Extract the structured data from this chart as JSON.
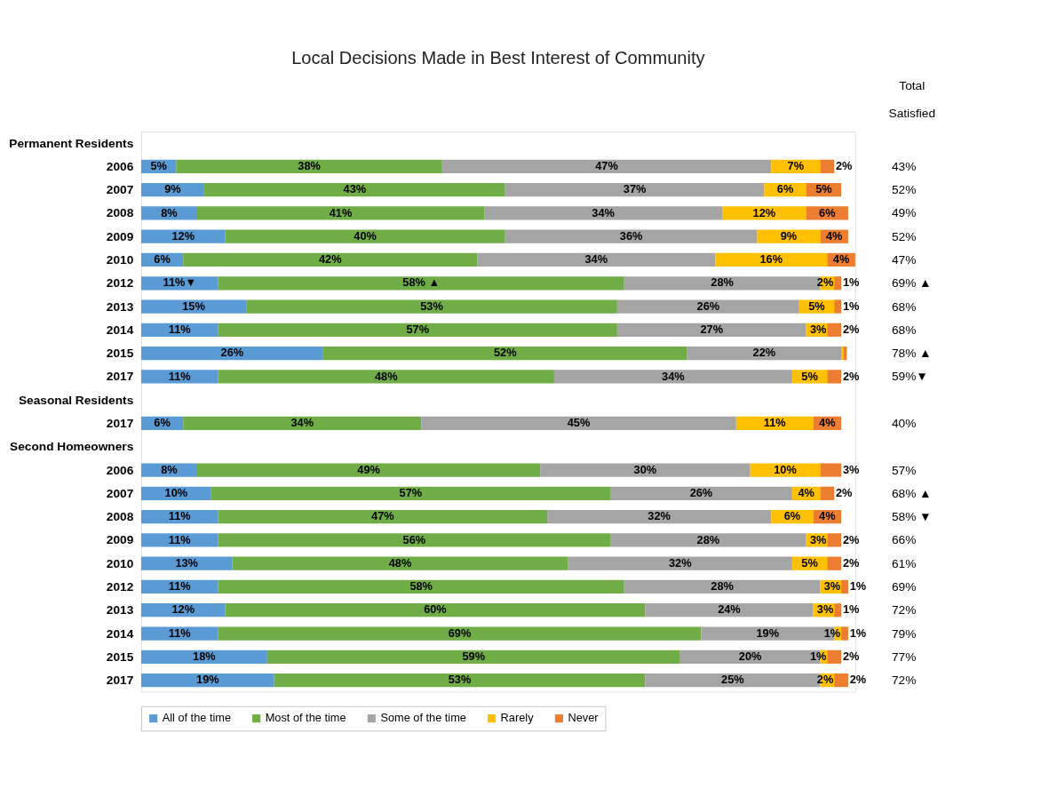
{
  "chart_data": {
    "type": "bar",
    "orientation": "horizontal",
    "stacked": true,
    "title": "Local Decisions Made in Best Interest of Community",
    "categories": [
      "Permanent Residents",
      "2006",
      "2007",
      "2008",
      "2009",
      "2010",
      "2012",
      "2013",
      "2014",
      "2015",
      "2017",
      "Seasonal Residents",
      "2017",
      "Second Homeowners",
      "2006",
      "2007",
      "2008",
      "2009",
      "2010",
      "2012",
      "2013",
      "2014",
      "2015",
      "2017"
    ],
    "series": [
      {
        "name": "All of the time",
        "color": "#5b9bd5",
        "values": [
          null,
          5,
          9,
          8,
          12,
          6,
          11,
          15,
          11,
          26,
          11,
          null,
          6,
          null,
          8,
          10,
          11,
          11,
          13,
          11,
          12,
          11,
          18,
          19
        ],
        "value_labels": [
          null,
          "5%",
          "9%",
          "8%",
          "12%",
          "6%",
          "11%▼",
          "15%",
          "11%",
          "26%",
          "11%",
          null,
          "6%",
          null,
          "8%",
          "10%",
          "11%",
          "11%",
          "13%",
          "11%",
          "12%",
          "11%",
          "18%",
          "19%"
        ]
      },
      {
        "name": "Most of the time",
        "color": "#70ad47",
        "values": [
          null,
          38,
          43,
          41,
          40,
          42,
          58,
          53,
          57,
          52,
          48,
          null,
          34,
          null,
          49,
          57,
          47,
          56,
          48,
          58,
          60,
          69,
          59,
          53
        ],
        "value_labels": [
          null,
          "38%",
          "43%",
          "41%",
          "40%",
          "42%",
          "58% ▲",
          "53%",
          "57%",
          "52%",
          "48%",
          null,
          "34%",
          null,
          "49%",
          "57%",
          "47%",
          "56%",
          "48%",
          "58%",
          "60%",
          "69%",
          "59%",
          "53%"
        ]
      },
      {
        "name": "Some of the time",
        "color": "#a5a5a5",
        "values": [
          null,
          47,
          37,
          34,
          36,
          34,
          28,
          26,
          27,
          22,
          34,
          null,
          45,
          null,
          30,
          26,
          32,
          28,
          32,
          28,
          24,
          19,
          20,
          25
        ],
        "value_labels": [
          null,
          "47%",
          "37%",
          "34%",
          "36%",
          "34%",
          "28%",
          "26%",
          "27%",
          "22%",
          "34%",
          null,
          "45%",
          null,
          "30%",
          "26%",
          "32%",
          "28%",
          "32%",
          "28%",
          "24%",
          "19%",
          "20%",
          "25%"
        ]
      },
      {
        "name": "Rarely",
        "color": "#ffc000",
        "values": [
          null,
          7,
          6,
          12,
          9,
          16,
          2,
          5,
          3,
          0.3,
          5,
          null,
          11,
          null,
          10,
          4,
          6,
          3,
          5,
          3,
          3,
          1,
          1,
          2
        ],
        "value_labels": [
          null,
          "7%",
          "6%",
          "12%",
          "9%",
          "16%",
          "2%",
          "5%",
          "3%",
          null,
          "5%",
          null,
          "11%",
          null,
          "10%",
          "4%",
          "6%",
          "3%",
          "5%",
          "3%",
          "3%",
          "1%",
          "1%",
          "2%"
        ]
      },
      {
        "name": "Never",
        "color": "#ed7d31",
        "values": [
          null,
          2,
          5,
          6,
          4,
          4,
          1,
          1,
          2,
          0.5,
          2,
          null,
          4,
          null,
          3,
          2,
          4,
          2,
          2,
          1,
          1,
          1,
          2,
          2
        ],
        "value_labels": [
          null,
          "2%",
          "5%",
          "6%",
          "4%",
          "4%",
          "1%",
          "1%",
          "2%",
          null,
          "2%",
          null,
          "4%",
          null,
          "3%",
          "2%",
          "4%",
          "2%",
          "2%",
          "1%",
          "1%",
          "1%",
          "2%",
          "2%"
        ]
      }
    ],
    "annotations": [
      "Total Satisfied",
      "43%",
      "52%",
      "49%",
      "52%",
      "47%",
      "69% ▲",
      "68%",
      "68%",
      "78% ▲",
      "59%▼",
      "40%",
      "57%",
      "68% ▲",
      "58% ▼",
      "66%",
      "61%",
      "69%",
      "72%",
      "79%",
      "77%",
      "72%"
    ],
    "xlim": [
      0,
      102
    ],
    "tick_labels": "y",
    "legend": "bottom"
  }
}
